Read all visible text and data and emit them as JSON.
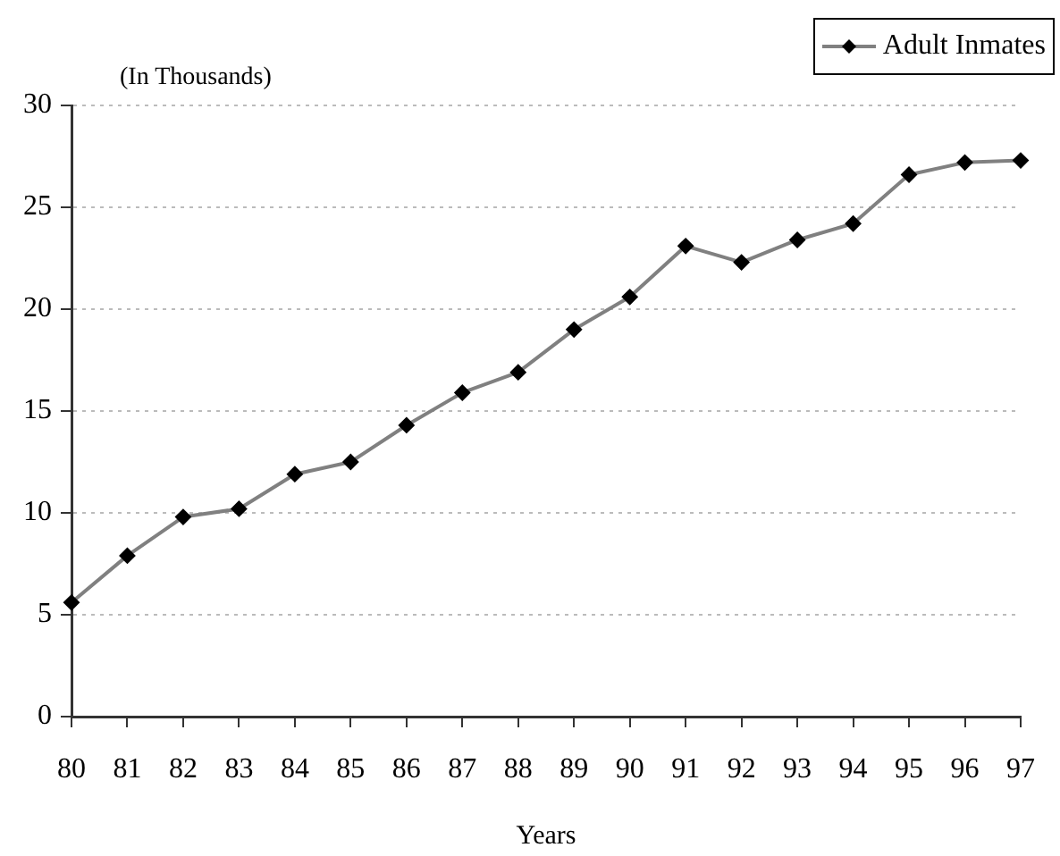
{
  "chart_data": {
    "type": "line",
    "ylabel": "(In Thousands)",
    "xlabel": "Years",
    "categories": [
      "80",
      "81",
      "82",
      "83",
      "84",
      "85",
      "86",
      "87",
      "88",
      "89",
      "90",
      "91",
      "92",
      "93",
      "94",
      "95",
      "96",
      "97"
    ],
    "series": [
      {
        "name": "Adult Inmates",
        "color": "#808080",
        "values": [
          5.6,
          7.9,
          9.8,
          10.2,
          11.9,
          12.5,
          14.3,
          15.9,
          16.9,
          19.0,
          20.6,
          23.1,
          22.3,
          23.4,
          24.2,
          26.6,
          27.2,
          27.3
        ]
      }
    ],
    "ylim": [
      0,
      30
    ],
    "yticks": [
      0,
      5,
      10,
      15,
      20,
      25,
      30
    ],
    "grid": "y",
    "legend": "top right",
    "marker": "diamond",
    "line_style": "solid"
  }
}
